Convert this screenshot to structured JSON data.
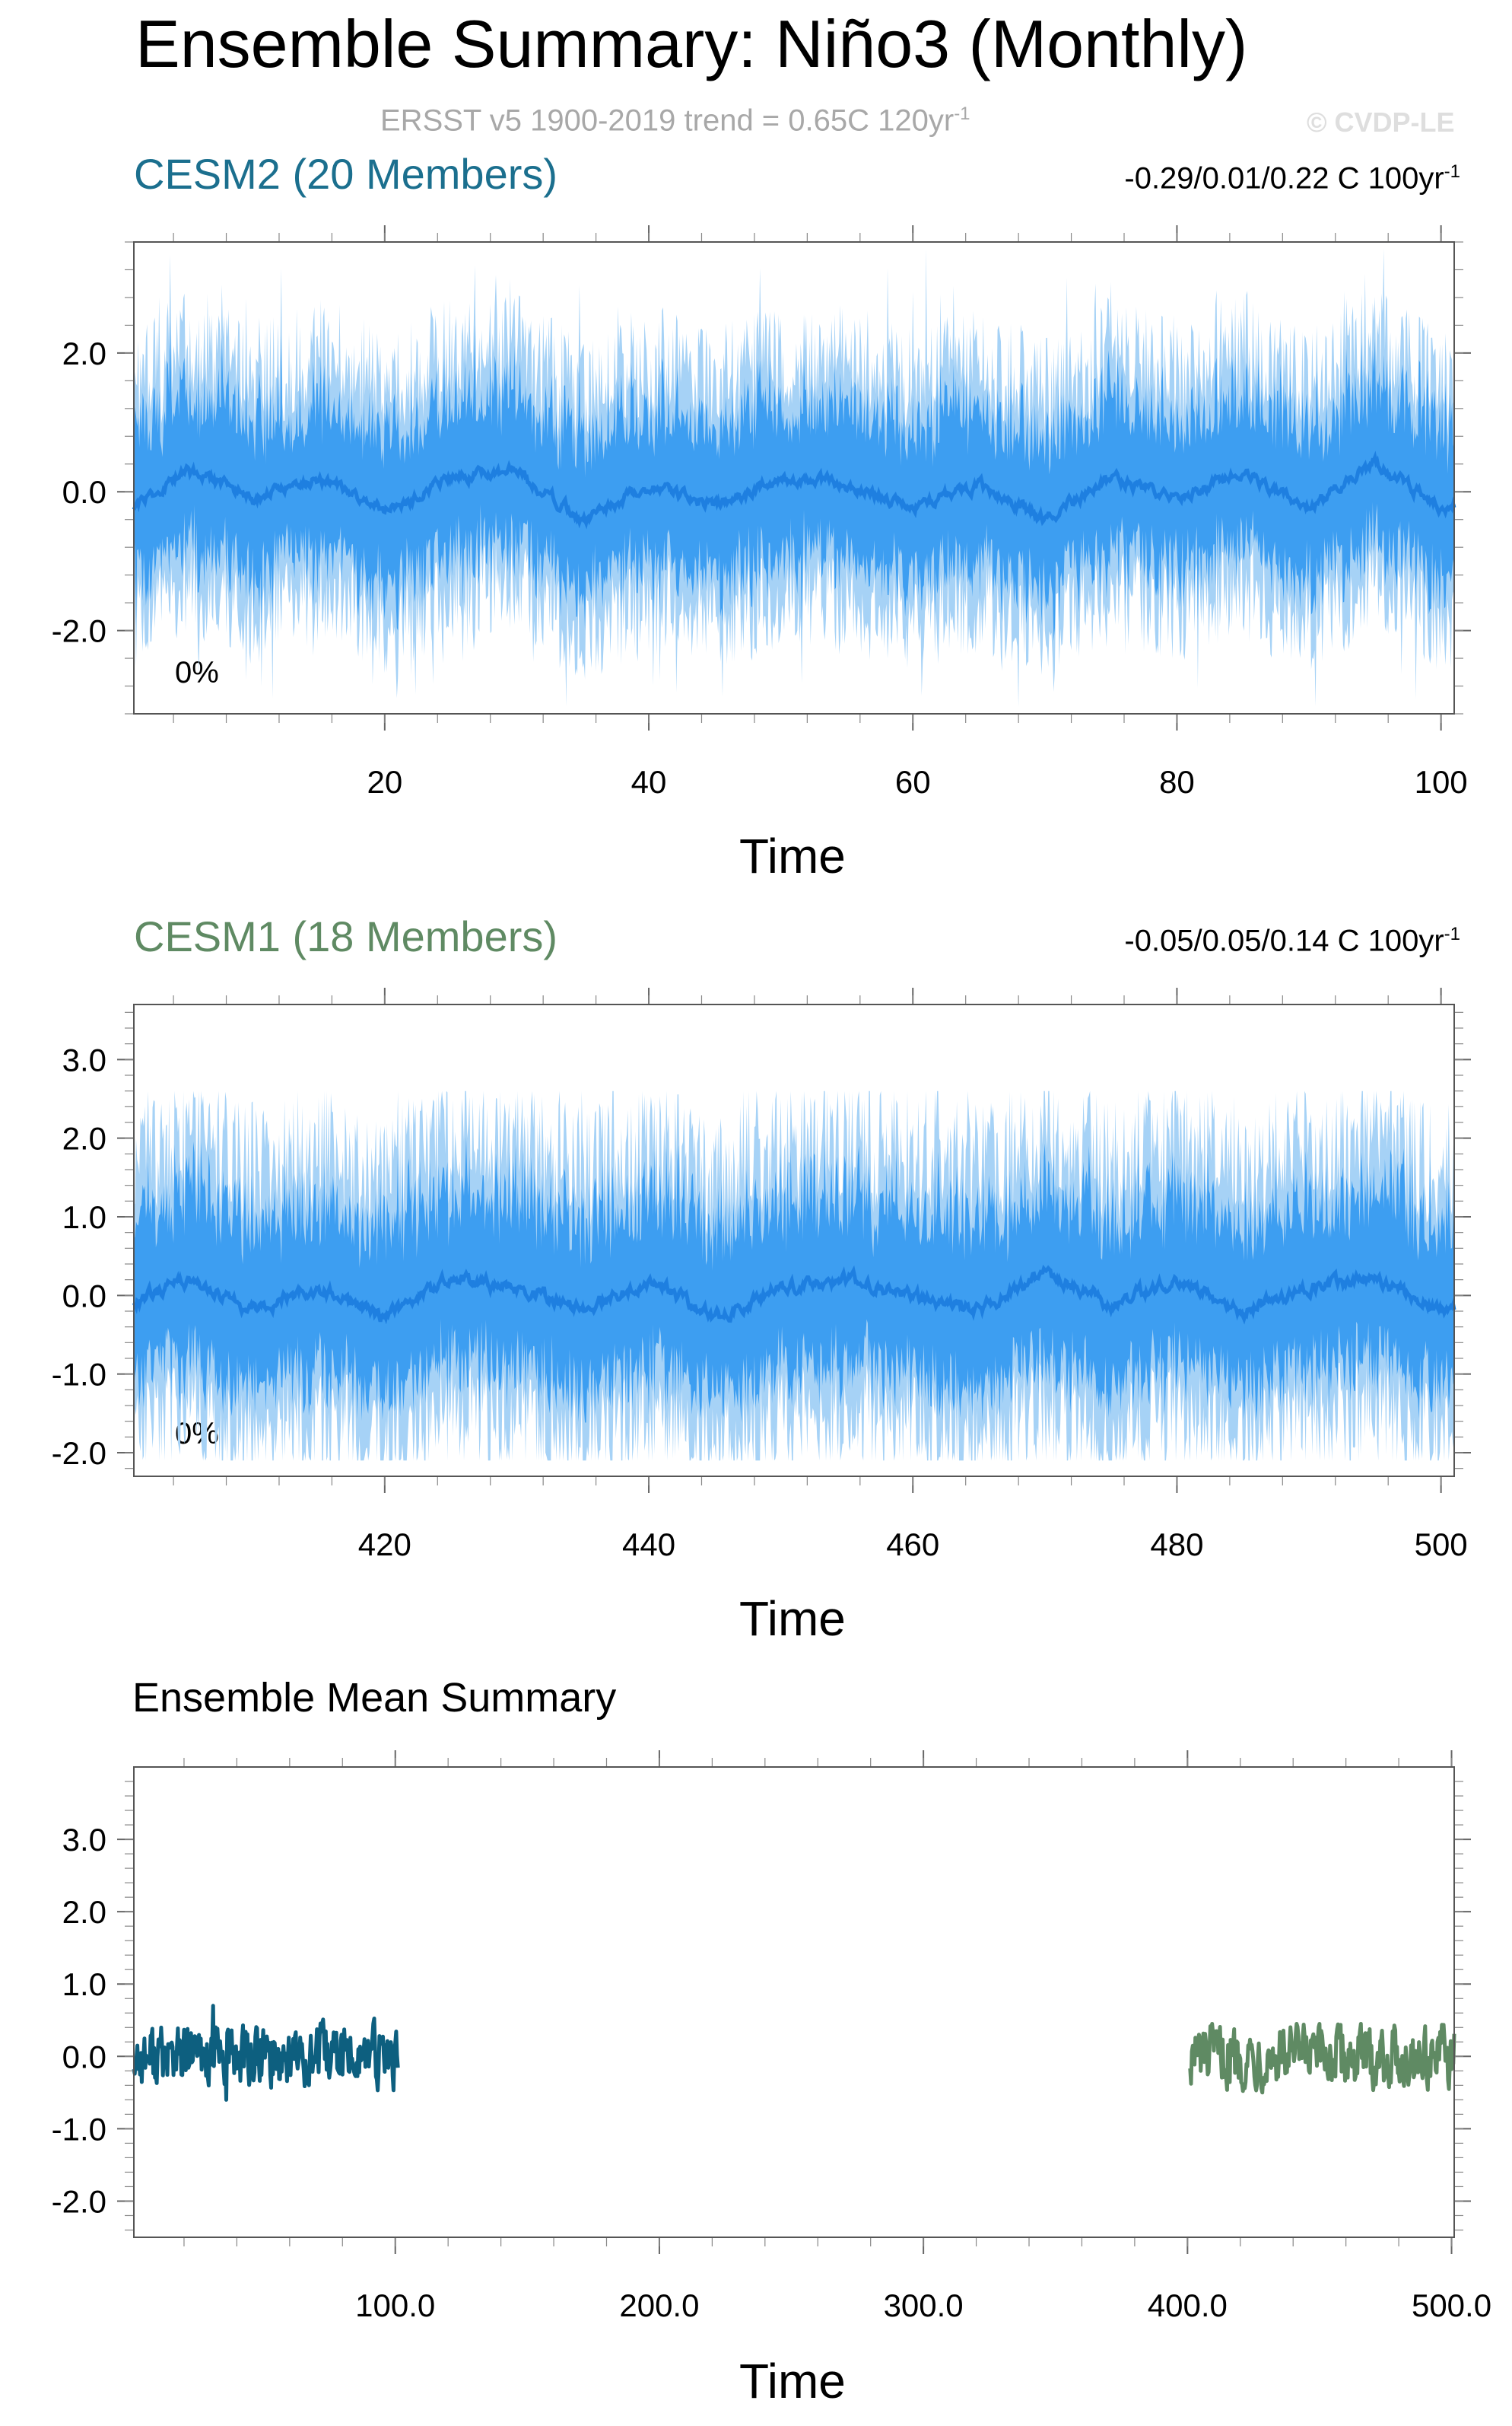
{
  "page": {
    "title": "Ensemble Summary: Niño3 (Monthly)",
    "subtitle": "ERSST v5 1900-2019 trend = 0.65C 120yr",
    "subtitle_sup": "-1",
    "watermark": "© CVDP-LE"
  },
  "colors": {
    "cesm2_title": "#1b6f8e",
    "cesm1_title": "#5f8a63",
    "band_outer": "#a6d2f6",
    "band_inner": "#3d9ef1",
    "mean_line": "#1e7fe0",
    "cesm2_mean": "#0d5f7f",
    "cesm1_mean": "#5f8a63"
  },
  "panels": [
    {
      "title": "CESM2 (20 Members)",
      "trend": "-0.29/0.01/0.22 C 100yr",
      "trend_sup": "-1",
      "percent": "0%",
      "xlabel": "Time",
      "xticks": [
        "20",
        "40",
        "60",
        "80",
        "100"
      ],
      "yticks": [
        "2.0",
        "0.0",
        "-2.0"
      ]
    },
    {
      "title": "CESM1 (18 Members)",
      "trend": "-0.05/0.05/0.14 C 100yr",
      "trend_sup": "-1",
      "percent": "0%",
      "xlabel": "Time",
      "xticks": [
        "420",
        "440",
        "460",
        "480",
        "500"
      ],
      "yticks": [
        "3.0",
        "2.0",
        "1.0",
        "0.0",
        "-1.0",
        "-2.0"
      ]
    },
    {
      "title": "Ensemble Mean Summary",
      "xlabel": "Time",
      "xticks": [
        "100.0",
        "200.0",
        "300.0",
        "400.0",
        "500.0"
      ],
      "yticks": [
        "3.0",
        "2.0",
        "1.0",
        "0.0",
        "-1.0",
        "-2.0"
      ]
    }
  ],
  "chart_data": [
    {
      "type": "area",
      "title": "CESM2 (20 Members)",
      "xlabel": "Time",
      "ylabel": "",
      "xlim": [
        1,
        101
      ],
      "ylim": [
        -3.2,
        3.6
      ],
      "xticks": [
        20,
        40,
        60,
        80,
        100
      ],
      "yticks": [
        2,
        0,
        -2
      ],
      "series": [
        {
          "name": "ensemble mean",
          "x": [
            1,
            5,
            10,
            15,
            20,
            25,
            30,
            35,
            40,
            45,
            50,
            55,
            60,
            65,
            70,
            75,
            80,
            85,
            90,
            95,
            100
          ],
          "y": [
            -0.2,
            0.3,
            -0.1,
            0.2,
            -0.3,
            0.2,
            0.3,
            -0.4,
            0.1,
            -0.2,
            0.2,
            0.1,
            -0.2,
            0.1,
            -0.4,
            0.2,
            -0.1,
            0.3,
            -0.2,
            0.4,
            -0.2
          ]
        }
      ],
      "range_max": 3.5,
      "range_min": -3.1
    },
    {
      "type": "area",
      "title": "CESM1 (18 Members)",
      "xlabel": "Time",
      "ylabel": "",
      "xlim": [
        401,
        501
      ],
      "ylim": [
        -2.3,
        3.7
      ],
      "xticks": [
        420,
        440,
        460,
        480,
        500
      ],
      "yticks": [
        3,
        2,
        1,
        0,
        -1,
        -2
      ],
      "series": [
        {
          "name": "ensemble mean",
          "x": [
            401,
            405,
            410,
            415,
            420,
            425,
            430,
            435,
            440,
            445,
            450,
            455,
            460,
            465,
            470,
            475,
            480,
            485,
            490,
            495,
            500
          ],
          "y": [
            -0.1,
            0.2,
            -0.2,
            0.1,
            -0.3,
            0.2,
            0.1,
            -0.2,
            0.2,
            -0.3,
            0.1,
            0.2,
            0.0,
            -0.2,
            0.3,
            -0.1,
            0.2,
            -0.2,
            0.1,
            0.2,
            -0.2
          ]
        }
      ],
      "range_max": 2.6,
      "range_min": -2.1
    },
    {
      "type": "line",
      "title": "Ensemble Mean Summary",
      "xlabel": "Time",
      "ylabel": "",
      "xlim": [
        1,
        501
      ],
      "ylim": [
        -2.5,
        4.0
      ],
      "xticks": [
        100,
        200,
        300,
        400,
        500
      ],
      "yticks": [
        3,
        2,
        1,
        0,
        -1,
        -2
      ],
      "series": [
        {
          "name": "CESM2",
          "x": [
            1,
            101
          ],
          "y_range": [
            -0.6,
            0.7
          ]
        },
        {
          "name": "CESM1",
          "x": [
            401,
            501
          ],
          "y_range": [
            -0.5,
            0.45
          ]
        }
      ]
    }
  ]
}
